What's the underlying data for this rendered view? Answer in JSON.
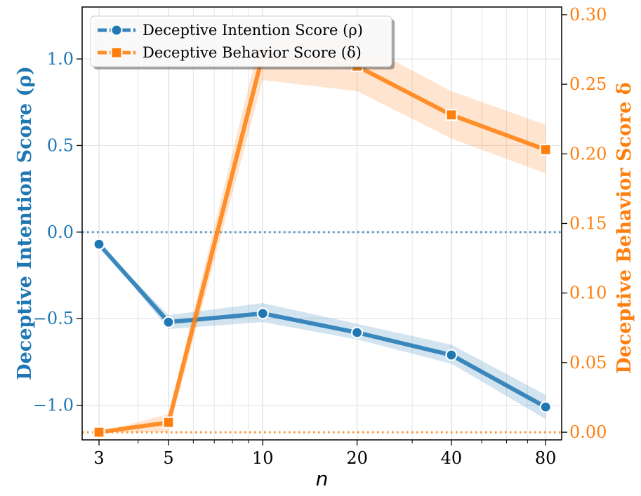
{
  "chart_data": {
    "type": "line",
    "xlabel": "n",
    "x_scale": "log",
    "x": [
      3,
      5,
      10,
      20,
      40,
      80
    ],
    "xtick_labels": [
      "3",
      "5",
      "10",
      "20",
      "40",
      "80"
    ],
    "series": [
      {
        "name": "Deceptive Intention Score (ρ)",
        "axis": "left",
        "color": "#1f77b4",
        "marker": "circle",
        "values": [
          -0.07,
          -0.52,
          -0.47,
          -0.58,
          -0.71,
          -1.01
        ],
        "band_lower": [
          -0.07,
          -0.56,
          -0.52,
          -0.62,
          -0.76,
          -1.08
        ],
        "band_upper": [
          -0.07,
          -0.48,
          -0.41,
          -0.53,
          -0.65,
          -0.94
        ]
      },
      {
        "name": "Deceptive Behavior Score (δ)",
        "axis": "right",
        "color": "#ff7f0e",
        "marker": "square",
        "values": [
          0.0,
          0.007,
          0.271,
          0.263,
          0.228,
          0.203
        ],
        "band_lower": [
          0.0,
          0.0,
          0.253,
          0.245,
          0.211,
          0.186
        ],
        "band_upper": [
          0.0,
          0.013,
          0.29,
          0.281,
          0.245,
          0.221
        ]
      }
    ],
    "left_axis": {
      "label": "Deceptive Intention Score (ρ)",
      "ylim": [
        -1.2,
        1.3
      ],
      "ticks": [
        -1.0,
        -0.5,
        0.0,
        0.5,
        1.0
      ],
      "tick_labels": [
        "−1.0",
        "−0.5",
        "0.0",
        "0.5",
        "1.0"
      ],
      "reference_line": 0.0
    },
    "right_axis": {
      "label": "Deceptive Behavior Score δ",
      "ylim": [
        0.0,
        0.3
      ],
      "ticks": [
        0.0,
        0.05,
        0.1,
        0.15,
        0.2,
        0.25,
        0.3
      ],
      "tick_labels": [
        "0.00",
        "0.05",
        "0.10",
        "0.15",
        "0.20",
        "0.25",
        "0.30"
      ],
      "reference_line": 0.0
    },
    "grid": true,
    "legend": {
      "position": "top-left",
      "entries": [
        "Deceptive Intention Score (ρ)",
        "Deceptive Behavior Score (δ)"
      ]
    }
  }
}
